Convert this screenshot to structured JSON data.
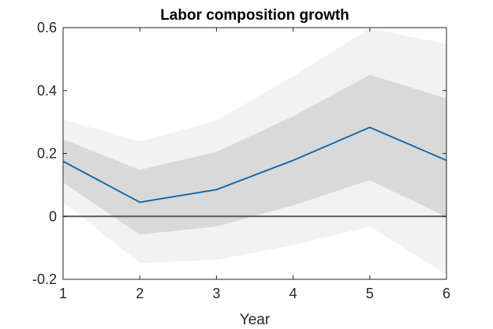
{
  "chart_data": {
    "type": "line",
    "title": "Labor composition growth",
    "xlabel": "Year",
    "ylabel": "",
    "x": [
      1,
      2,
      3,
      4,
      5,
      6
    ],
    "xlim": [
      1,
      6
    ],
    "ylim": [
      -0.2,
      0.6
    ],
    "xticks": [
      1,
      2,
      3,
      4,
      5,
      6
    ],
    "yticks": [
      -0.2,
      0,
      0.2,
      0.4,
      0.6
    ],
    "ytick_labels": [
      "-0.2",
      "0",
      "0.2",
      "0.4",
      "0.6"
    ],
    "grid": false,
    "legend": "none",
    "series": [
      {
        "values": [
          0.175,
          0.045,
          0.085,
          0.178,
          0.283,
          0.178
        ],
        "color": "#0a63a8"
      }
    ],
    "bands": [
      {
        "lower": [
          0.045,
          -0.148,
          -0.138,
          -0.092,
          -0.032,
          -0.185
        ],
        "upper": [
          0.308,
          0.238,
          0.305,
          0.445,
          0.598,
          0.548
        ],
        "color": "#f2f2f2"
      },
      {
        "lower": [
          0.108,
          -0.058,
          -0.032,
          0.035,
          0.115,
          -0.002
        ],
        "upper": [
          0.245,
          0.148,
          0.205,
          0.318,
          0.45,
          0.375
        ],
        "color": "#d9d9d9"
      }
    ],
    "reference_line": {
      "y": 0,
      "color": "#5a5a5a"
    }
  }
}
